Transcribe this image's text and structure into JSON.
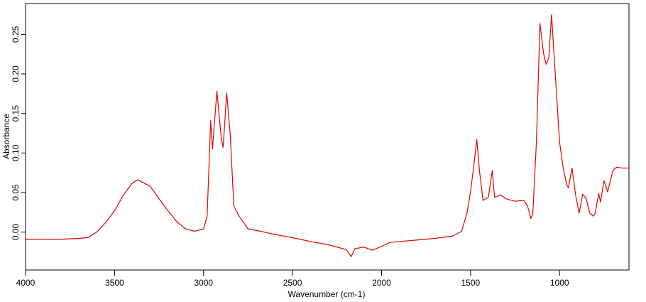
{
  "chart_data": {
    "type": "line",
    "xlabel": "Wavenumber (cm-1)",
    "ylabel": "Absorbance",
    "color": "#e00000",
    "grid": false,
    "xlim": [
      4000,
      610
    ],
    "ylim": [
      -0.048,
      0.289
    ],
    "xticks": [
      4000,
      3500,
      3000,
      2500,
      2000,
      1500,
      1000
    ],
    "yticks": [
      {
        "value": 0,
        "label": "0.00"
      },
      0.05,
      {
        "value": 0.1,
        "label": "0.10"
      },
      0.15,
      {
        "value": 0.2,
        "label": "0.20"
      },
      0.25
    ],
    "x": [
      4000,
      3800,
      3700,
      3650,
      3600,
      3550,
      3500,
      3450,
      3400,
      3370,
      3300,
      3250,
      3200,
      3150,
      3100,
      3050,
      3000,
      2980,
      2960,
      2950,
      2925,
      2900,
      2890,
      2870,
      2850,
      2830,
      2800,
      2750,
      2700,
      2600,
      2500,
      2400,
      2300,
      2200,
      2170,
      2150,
      2100,
      2050,
      2000,
      1950,
      1900,
      1800,
      1700,
      1600,
      1550,
      1520,
      1500,
      1480,
      1465,
      1450,
      1430,
      1400,
      1378,
      1365,
      1330,
      1300,
      1250,
      1200,
      1180,
      1160,
      1150,
      1130,
      1110,
      1090,
      1075,
      1060,
      1045,
      1030,
      1015,
      1000,
      980,
      960,
      950,
      930,
      910,
      890,
      870,
      850,
      830,
      810,
      800,
      780,
      770,
      750,
      730,
      700,
      680,
      650,
      610
    ],
    "values": [
      -0.009,
      -0.009,
      -0.008,
      -0.007,
      0.0,
      0.012,
      0.027,
      0.047,
      0.062,
      0.066,
      0.058,
      0.042,
      0.027,
      0.013,
      0.004,
      0.001,
      0.004,
      0.02,
      0.141,
      0.105,
      0.178,
      0.118,
      0.107,
      0.176,
      0.123,
      0.033,
      0.02,
      0.004,
      0.002,
      -0.003,
      -0.007,
      -0.012,
      -0.016,
      -0.022,
      -0.031,
      -0.021,
      -0.019,
      -0.023,
      -0.018,
      -0.013,
      -0.012,
      -0.01,
      -0.008,
      -0.005,
      0.001,
      0.024,
      0.051,
      0.087,
      0.117,
      0.078,
      0.04,
      0.044,
      0.078,
      0.044,
      0.047,
      0.042,
      0.039,
      0.04,
      0.033,
      0.017,
      0.024,
      0.114,
      0.264,
      0.226,
      0.212,
      0.221,
      0.275,
      0.221,
      0.168,
      0.114,
      0.082,
      0.06,
      0.056,
      0.081,
      0.047,
      0.024,
      0.048,
      0.042,
      0.024,
      0.02,
      0.024,
      0.049,
      0.038,
      0.065,
      0.051,
      0.078,
      0.082,
      0.081,
      0.081
    ]
  }
}
